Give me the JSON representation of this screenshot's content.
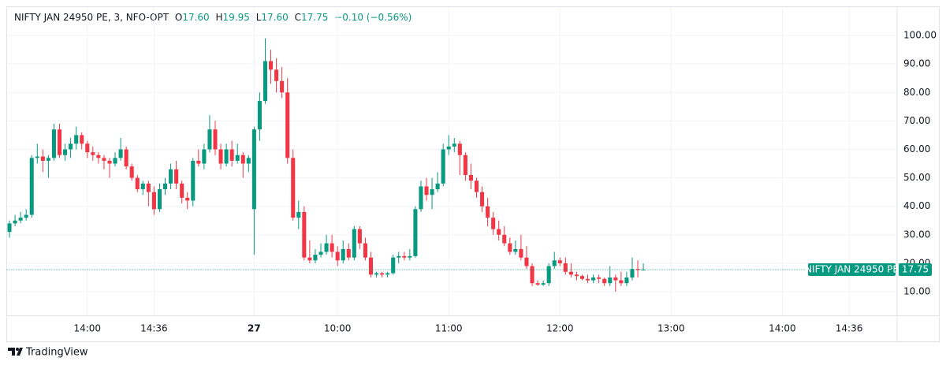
{
  "chart_data": {
    "type": "candlestick",
    "title": "NIFTY JAN 24950 PE, 3, NFO-OPT",
    "ohlc_labels": [
      "O",
      "H",
      "L",
      "C"
    ],
    "ohlc_value_labels": [
      "17.60",
      "19.95",
      "17.60",
      "17.75"
    ],
    "change_label": "−0.10 (−0.56%)",
    "price_tag_label": "NIFTY JAN 24950 PE",
    "up_color": "#089981",
    "down_color": "#f23645",
    "categories": [
      null,
      null,
      null,
      null,
      null,
      null,
      null,
      null,
      null,
      null,
      null,
      null,
      null,
      null,
      "14:00",
      null,
      null,
      null,
      null,
      null,
      null,
      null,
      null,
      null,
      null,
      null,
      "14:36",
      null,
      null,
      null,
      null,
      null,
      null,
      null,
      null,
      null,
      null,
      null,
      null,
      null,
      null,
      null,
      null,
      null,
      "27",
      null,
      null,
      null,
      null,
      null,
      null,
      null,
      null,
      null,
      null,
      null,
      null,
      null,
      null,
      "10:00",
      null,
      null,
      null,
      null,
      null,
      null,
      null,
      null,
      null,
      null,
      null,
      null,
      null,
      null,
      null,
      null,
      null,
      null,
      null,
      "11:00",
      null,
      null,
      null,
      null,
      null,
      null,
      null,
      null,
      null,
      null,
      null,
      null,
      null,
      null,
      null,
      null,
      null,
      null,
      null,
      "12:00",
      null,
      null,
      null,
      null,
      null,
      null,
      null,
      null,
      null,
      null,
      null,
      null,
      null,
      null,
      null,
      null,
      null,
      null,
      null,
      "13:00",
      null,
      null,
      null,
      null,
      null,
      null,
      null,
      null,
      null,
      null,
      null,
      null,
      null,
      null,
      null,
      null,
      null,
      null,
      null,
      "14:00",
      null,
      null,
      null,
      null,
      null,
      null,
      null,
      null,
      null,
      null,
      null,
      "14:36",
      null,
      null,
      null,
      null,
      null,
      null,
      null,
      null
    ],
    "bold_categories": [
      "27"
    ],
    "open": [
      31,
      34,
      35,
      36,
      37,
      57,
      57.5,
      56,
      57,
      67,
      58,
      60,
      62,
      65,
      62,
      59,
      58,
      57,
      56,
      55,
      57,
      60,
      54,
      50,
      46,
      48,
      45,
      39,
      46,
      48,
      53,
      48,
      43,
      42,
      56,
      55,
      60,
      67,
      60,
      55,
      60,
      56,
      58,
      55,
      39,
      67,
      77,
      91,
      88,
      84,
      80,
      57,
      36,
      38,
      22,
      21,
      23,
      24,
      27,
      24,
      21,
      25,
      22,
      32,
      27,
      22,
      16,
      16.5,
      16,
      16.5,
      22,
      22.5,
      22,
      22.5,
      39,
      47,
      44,
      46,
      48,
      60,
      61,
      62,
      58,
      51,
      49,
      45,
      40,
      36,
      32,
      30,
      27,
      24,
      25,
      22,
      19,
      13,
      12.5,
      13,
      19,
      21,
      20,
      17,
      16,
      15.5,
      14.5,
      14,
      15,
      14.5,
      13,
      15,
      14,
      13,
      15,
      18,
      17.6,
      null,
      null,
      null,
      null,
      null,
      null,
      null,
      null,
      null,
      null,
      null,
      null,
      null,
      null,
      null,
      null,
      null,
      null,
      null,
      null,
      null,
      null,
      null,
      null,
      null,
      null,
      null,
      null,
      null,
      null,
      null,
      null,
      null,
      null,
      null,
      null,
      null,
      null,
      null,
      null,
      null,
      null,
      null,
      null,
      null
    ],
    "high": [
      35,
      37,
      38,
      39,
      58,
      62,
      60,
      58,
      69,
      69,
      62,
      64,
      68,
      66,
      63,
      61,
      59,
      58,
      57,
      59,
      64,
      61,
      55,
      51,
      49,
      49,
      47,
      48,
      50,
      55,
      56,
      49,
      45,
      57,
      60,
      62,
      72,
      70,
      62,
      62,
      63,
      62,
      59,
      58,
      68,
      80,
      99,
      95,
      92,
      89,
      85,
      60,
      42,
      40,
      28,
      25,
      27,
      30,
      30,
      26,
      28,
      27,
      33,
      33,
      29,
      24,
      17,
      17,
      17,
      23,
      24,
      24,
      25,
      40,
      49,
      50,
      50,
      52,
      62,
      65,
      64,
      63,
      59,
      55,
      50,
      47,
      43,
      38,
      35,
      33,
      29,
      28,
      30,
      26,
      20,
      14,
      14,
      20,
      24,
      22,
      22,
      20,
      17,
      16,
      16,
      16,
      16,
      15,
      19,
      16,
      17,
      17,
      22,
      21,
      19.95,
      null,
      null,
      null,
      null,
      null,
      null,
      null,
      null,
      null,
      null,
      null,
      null,
      null,
      null,
      null,
      null,
      null,
      null,
      null,
      null,
      null,
      null,
      null,
      null,
      null,
      null,
      null,
      null,
      null,
      null,
      null,
      null,
      null,
      null,
      null,
      null,
      null,
      null,
      null,
      null,
      null,
      null,
      null,
      null,
      null
    ],
    "low": [
      29,
      33,
      34,
      35,
      36,
      55,
      52,
      50,
      56,
      57,
      56,
      57,
      60,
      60,
      57,
      56,
      55,
      53,
      50,
      54,
      56,
      53,
      49,
      45,
      44,
      40,
      37,
      38,
      44,
      46,
      46,
      41,
      39,
      40,
      54,
      53,
      59,
      58,
      53,
      54,
      54,
      55,
      50,
      52,
      23,
      63,
      76,
      83,
      80,
      78,
      55,
      35,
      32,
      21,
      20,
      20,
      22,
      23,
      22,
      19,
      20,
      21,
      21,
      25,
      21,
      15,
      15,
      15,
      15,
      16,
      20,
      21,
      21,
      22,
      38,
      42,
      39,
      45,
      47,
      58,
      59,
      51,
      49,
      46,
      43,
      38,
      33,
      30,
      28,
      26,
      23,
      23,
      21,
      18,
      12,
      12,
      12,
      12,
      18,
      19,
      16,
      15,
      14,
      14,
      13,
      13,
      13,
      12,
      12,
      10,
      12,
      12,
      14,
      15,
      17.6,
      null,
      null,
      null,
      null,
      null,
      null,
      null,
      null,
      null,
      null,
      null,
      null,
      null,
      null,
      null,
      null,
      null,
      null,
      null,
      null,
      null,
      null,
      null,
      null,
      null,
      null,
      null,
      null,
      null,
      null,
      null,
      null,
      null,
      null,
      null,
      null,
      null,
      null,
      null,
      null,
      null,
      null,
      null,
      null,
      null
    ],
    "close": [
      34,
      35,
      36,
      37,
      57,
      57.5,
      56,
      57,
      67,
      58,
      60,
      62,
      65,
      62,
      59,
      58,
      57,
      56,
      55,
      57,
      60,
      54,
      50,
      46,
      48,
      45,
      39,
      46,
      48,
      53,
      48,
      43,
      42,
      56,
      55,
      60,
      67,
      60,
      55,
      60,
      56,
      58,
      55,
      57,
      67,
      77,
      91,
      88,
      84,
      80,
      57,
      36,
      38,
      22,
      21,
      23,
      24,
      27,
      24,
      21,
      25,
      22,
      32,
      27,
      22,
      16,
      16.5,
      16,
      16.5,
      22,
      22.5,
      22,
      22.5,
      39,
      47,
      44,
      46,
      48,
      60,
      61,
      62,
      58,
      51,
      49,
      45,
      40,
      36,
      32,
      30,
      27,
      24,
      25,
      22,
      19,
      13,
      12.5,
      13,
      19,
      21,
      20,
      17,
      16,
      15.5,
      14.5,
      14,
      15,
      14.5,
      13,
      15,
      14,
      13,
      15,
      18,
      17.6,
      17.75,
      null,
      null,
      null,
      null,
      null,
      null,
      null,
      null,
      null,
      null,
      null,
      null,
      null,
      null,
      null,
      null,
      null,
      null,
      null,
      null,
      null,
      null,
      null,
      null,
      null,
      null,
      null,
      null,
      null,
      null,
      null,
      null,
      null,
      null,
      null,
      null,
      null,
      null,
      null,
      null,
      null,
      null,
      null,
      null,
      null
    ],
    "ylim": [
      1.7,
      109.7
    ],
    "yticks": [
      {
        "value": 10,
        "label": "10.00"
      },
      {
        "value": 20,
        "label": "20.00"
      },
      {
        "value": 30,
        "label": "30.00"
      },
      {
        "value": 40,
        "label": "40.00"
      },
      {
        "value": 50,
        "label": "50.00"
      },
      {
        "value": 60,
        "label": "60.00"
      },
      {
        "value": 70,
        "label": "70.00"
      },
      {
        "value": 80,
        "label": "80.00"
      },
      {
        "value": 90,
        "label": "90.00"
      },
      {
        "value": 100,
        "label": "100.00"
      }
    ],
    "grid": true,
    "brand": "TradingView"
  }
}
